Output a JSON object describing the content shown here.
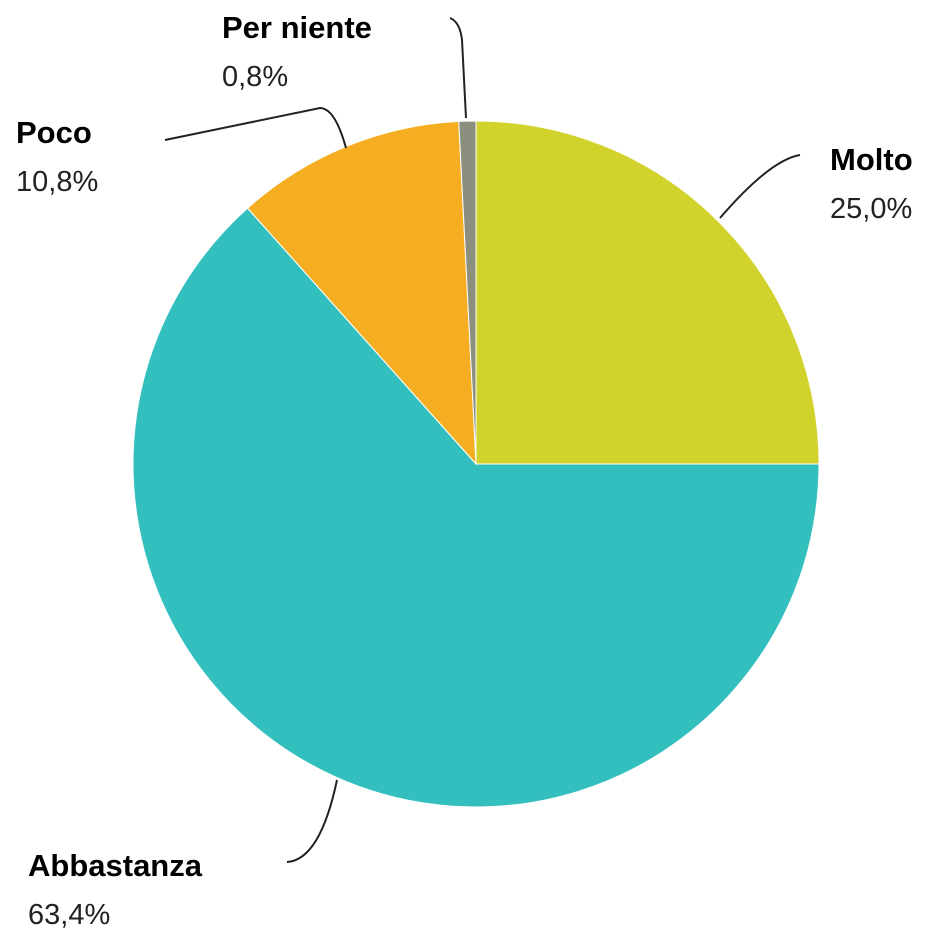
{
  "chart_data": {
    "type": "pie",
    "categories": [
      "Molto",
      "Abbastanza",
      "Poco",
      "Per niente"
    ],
    "values": [
      25.0,
      63.4,
      10.8,
      0.8
    ],
    "value_labels": [
      "25,0%",
      "63,4%",
      "10,8%",
      "0,8%"
    ],
    "colors": [
      "#d1d22b",
      "#34bfbf",
      "#f5ae22",
      "#8a8f7e"
    ]
  }
}
